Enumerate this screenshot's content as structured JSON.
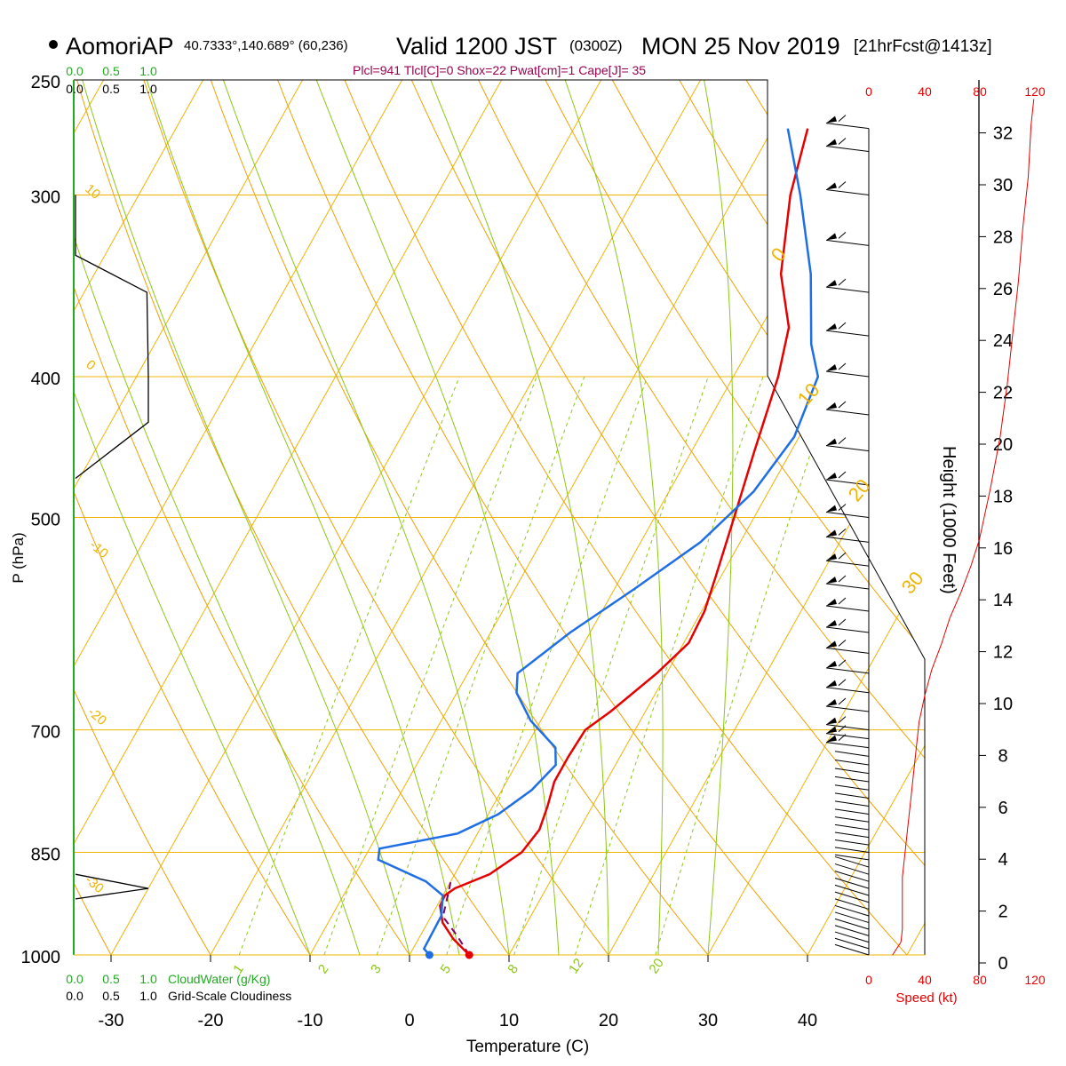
{
  "header": {
    "station": "AomoriAP",
    "coords": "40.7333°,140.689° (60,236)",
    "valid": "Valid 1200 JST",
    "zulu": "(0300Z)",
    "date": "MON 25 Nov 2019",
    "forecast": "[21hrFcst@1413z]",
    "indices": "Plcl=941 Tlcl[C]=0 Shox=22 Pwat[cm]=1 Cape[J]= 35"
  },
  "colors": {
    "temperature": "#e60000",
    "dewpoint": "#1e6fe6",
    "parcel": "#800060",
    "isotherm_grid": "#f0b400",
    "dry_adiabat": "#f0a000",
    "moist_adiabat": "#8cc814",
    "mixing_ratio": "#8cc814",
    "cloud_water": "#22aa22",
    "wind_speed": "#e60000",
    "indices": "#9b0050"
  },
  "chart_data": {
    "type": "skew-t",
    "xlabel": "Temperature (C)",
    "ylabel": "P (hPa)",
    "right_ylabel": "Height (1000 Feet)",
    "x_ticks": [
      -30,
      -20,
      -10,
      0,
      10,
      20,
      30,
      40
    ],
    "x_ticks_labels": [
      "-30",
      "-20",
      "-10",
      "0",
      "10",
      "20",
      "30",
      "40"
    ],
    "pressure_ticks": [
      250,
      300,
      400,
      500,
      700,
      850,
      1000
    ],
    "pressure_ticks_labels": [
      "250",
      "300",
      "400",
      "500",
      "700",
      "850",
      "1000"
    ],
    "height_ticks": [
      0,
      2,
      4,
      6,
      8,
      10,
      12,
      14,
      16,
      18,
      20,
      22,
      24,
      26,
      28,
      30,
      32
    ],
    "height_ticks_labels": [
      "0",
      "2",
      "4",
      "6",
      "8",
      "10",
      "12",
      "14",
      "16",
      "18",
      "20",
      "22",
      "24",
      "26",
      "28",
      "30",
      "32"
    ],
    "temperature_profile": [
      {
        "p": 1000,
        "t": 6.0
      },
      {
        "p": 975,
        "t": 3.5
      },
      {
        "p": 950,
        "t": 1.5
      },
      {
        "p": 925,
        "t": 0.3
      },
      {
        "p": 910,
        "t": 0.2
      },
      {
        "p": 900,
        "t": 0.8
      },
      {
        "p": 880,
        "t": 3.5
      },
      {
        "p": 850,
        "t": 5.5
      },
      {
        "p": 820,
        "t": 6.0
      },
      {
        "p": 790,
        "t": 5.5
      },
      {
        "p": 760,
        "t": 4.8
      },
      {
        "p": 730,
        "t": 4.8
      },
      {
        "p": 700,
        "t": 5.0
      },
      {
        "p": 680,
        "t": 6.5
      },
      {
        "p": 640,
        "t": 9.0
      },
      {
        "p": 610,
        "t": 10.5
      },
      {
        "p": 580,
        "t": 10.3
      },
      {
        "p": 550,
        "t": 9.5
      },
      {
        "p": 500,
        "t": 8.0
      },
      {
        "p": 450,
        "t": 6.3
      },
      {
        "p": 400,
        "t": 4.5
      },
      {
        "p": 370,
        "t": 2.8
      },
      {
        "p": 340,
        "t": -1.0
      },
      {
        "p": 300,
        "t": -4.5
      },
      {
        "p": 270,
        "t": -6.5
      }
    ],
    "dewpoint_profile": [
      {
        "p": 1000,
        "t": 2.0
      },
      {
        "p": 990,
        "t": 1.1
      },
      {
        "p": 940,
        "t": 1.0
      },
      {
        "p": 910,
        "t": 0.0
      },
      {
        "p": 890,
        "t": -2.5
      },
      {
        "p": 860,
        "t": -8.5
      },
      {
        "p": 845,
        "t": -9.0
      },
      {
        "p": 825,
        "t": -2.0
      },
      {
        "p": 800,
        "t": 1.0
      },
      {
        "p": 770,
        "t": 3.0
      },
      {
        "p": 740,
        "t": 4.0
      },
      {
        "p": 720,
        "t": 3.0
      },
      {
        "p": 690,
        "t": -1.0
      },
      {
        "p": 660,
        "t": -4.0
      },
      {
        "p": 640,
        "t": -5.0
      },
      {
        "p": 600,
        "t": -2.0
      },
      {
        "p": 560,
        "t": 2.0
      },
      {
        "p": 520,
        "t": 6.0
      },
      {
        "p": 480,
        "t": 8.5
      },
      {
        "p": 440,
        "t": 9.5
      },
      {
        "p": 400,
        "t": 8.5
      },
      {
        "p": 380,
        "t": 6.0
      },
      {
        "p": 340,
        "t": 2.0
      },
      {
        "p": 300,
        "t": -3.5
      },
      {
        "p": 270,
        "t": -8.5
      }
    ],
    "parcel_profile": [
      {
        "p": 1000,
        "t": 6.0
      },
      {
        "p": 970,
        "t": 3.7
      },
      {
        "p": 941,
        "t": 1.2
      },
      {
        "p": 910,
        "t": 0.5
      },
      {
        "p": 890,
        "t": 0.0
      }
    ],
    "surface_temperature": 6.0,
    "surface_dewpoint": 2.0,
    "isotherm_labels": [
      "10",
      "0",
      "-10",
      "-20",
      "-30",
      "0",
      "10",
      "20",
      "30"
    ],
    "mixing_ratio_labels": [
      "1",
      "2",
      "3",
      "5",
      "8",
      "12",
      "20"
    ],
    "wind_speed_axis_labels": [
      "0",
      "40",
      "80",
      "120"
    ],
    "wind_speed_axis_title": "Speed (kt)",
    "wind_speed_profile": [
      {
        "h": 0,
        "kt": 17
      },
      {
        "h": 0.5,
        "kt": 23
      },
      {
        "h": 1,
        "kt": 24
      },
      {
        "h": 2,
        "kt": 24
      },
      {
        "h": 3,
        "kt": 24
      },
      {
        "h": 4,
        "kt": 26
      },
      {
        "h": 5,
        "kt": 28
      },
      {
        "h": 6,
        "kt": 30
      },
      {
        "h": 7,
        "kt": 32
      },
      {
        "h": 8,
        "kt": 34
      },
      {
        "h": 9,
        "kt": 36
      },
      {
        "h": 10,
        "kt": 40
      },
      {
        "h": 11,
        "kt": 45
      },
      {
        "h": 12,
        "kt": 52
      },
      {
        "h": 13,
        "kt": 58
      },
      {
        "h": 14,
        "kt": 66
      },
      {
        "h": 15,
        "kt": 73
      },
      {
        "h": 16,
        "kt": 79
      },
      {
        "h": 18,
        "kt": 87
      },
      {
        "h": 20,
        "kt": 94
      },
      {
        "h": 22,
        "kt": 99
      },
      {
        "h": 24,
        "kt": 103
      },
      {
        "h": 26,
        "kt": 107
      },
      {
        "h": 28,
        "kt": 110
      },
      {
        "h": 30,
        "kt": 114
      },
      {
        "h": 32,
        "kt": 116
      },
      {
        "h": 33,
        "kt": 118
      }
    ],
    "wind_barbs_hpa": [
      1000,
      990,
      980,
      970,
      960,
      950,
      940,
      930,
      920,
      910,
      900,
      890,
      880,
      870,
      860,
      850,
      840,
      830,
      820,
      810,
      800,
      790,
      780,
      770,
      760,
      750,
      740,
      730,
      720,
      710,
      700,
      680,
      660,
      640,
      620,
      600,
      580,
      560,
      540,
      520,
      500,
      475,
      450,
      425,
      400,
      375,
      350,
      325,
      300,
      280,
      270
    ],
    "cloud_water_label": "CloudWater (g/Kg)",
    "cloudiness_label": "Grid-Scale Cloudiness",
    "cloud_scale_labels": [
      "0.0",
      "0.5",
      "1.0"
    ],
    "cloud_scale_labels_top": [
      "0.0",
      "0.5",
      "1.0"
    ],
    "cloudiness_scale_labels": [
      "0.0",
      "0.5",
      "1.0"
    ],
    "cloudiness_scale_labels_top": [
      "0.0",
      "0.5",
      "1.0"
    ],
    "cloudiness_profile": [
      {
        "p": 300,
        "c": 0.0
      },
      {
        "p": 330,
        "c": 0.0
      },
      {
        "p": 350,
        "c": 0.98
      },
      {
        "p": 400,
        "c": 1.0
      },
      {
        "p": 430,
        "c": 1.0
      },
      {
        "p": 470,
        "c": 0.0
      },
      {
        "p": 880,
        "c": 0.0
      },
      {
        "p": 900,
        "c": 1.0
      },
      {
        "p": 915,
        "c": 0.0
      }
    ],
    "cloud_water_profile": [
      {
        "p": 270,
        "w": 0.0
      },
      {
        "p": 1000,
        "w": 0.0
      }
    ]
  }
}
